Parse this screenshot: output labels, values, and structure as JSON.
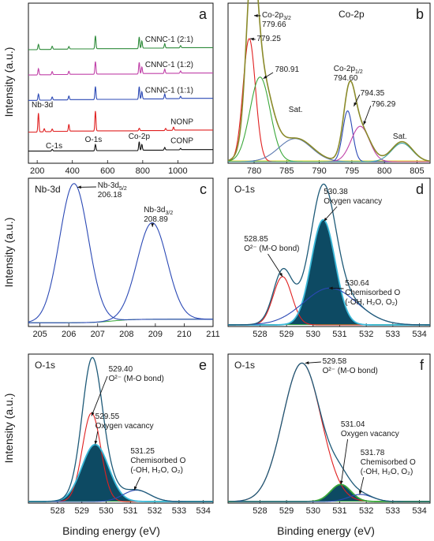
{
  "figure": {
    "ylabel": "Intensity (a.u.)",
    "xlabel": "Binding energy (eV)"
  },
  "chart_data": [
    {
      "id": "a",
      "type": "line",
      "panel_label": "a",
      "xlim": [
        150,
        1200
      ],
      "xticks": [
        200,
        400,
        600,
        800,
        1000
      ],
      "series": [
        {
          "name": "CNNC-1 (2:1)",
          "color": "#2e8b3a",
          "offset": 5.0,
          "peaks": [
            [
              207,
              0.25
            ],
            [
              285,
              0.15
            ],
            [
              380,
              0.12
            ],
            [
              531,
              0.62
            ],
            [
              780,
              0.55
            ],
            [
              795,
              0.35
            ],
            [
              925,
              0.2
            ],
            [
              1015,
              0.1
            ]
          ]
        },
        {
          "name": "CNNC-1 (1:2)",
          "color": "#c040a8",
          "offset": 3.8,
          "peaks": [
            [
              207,
              0.3
            ],
            [
              285,
              0.15
            ],
            [
              380,
              0.15
            ],
            [
              531,
              0.6
            ],
            [
              780,
              0.55
            ],
            [
              795,
              0.32
            ],
            [
              925,
              0.2
            ],
            [
              1015,
              0.1
            ]
          ]
        },
        {
          "name": "CNNC-1 (1:1)",
          "color": "#2b49b5",
          "offset": 2.6,
          "peaks": [
            [
              207,
              0.3
            ],
            [
              285,
              0.15
            ],
            [
              380,
              0.18
            ],
            [
              531,
              0.62
            ],
            [
              780,
              0.6
            ],
            [
              795,
              0.35
            ],
            [
              925,
              0.22
            ],
            [
              1015,
              0.1
            ]
          ]
        },
        {
          "name": "NONP",
          "color": "#e02020",
          "offset": 1.1,
          "peaks": [
            [
              207,
              0.9
            ],
            [
              240,
              0.15
            ],
            [
              285,
              0.12
            ],
            [
              380,
              0.32
            ],
            [
              531,
              0.95
            ],
            [
              780,
              0.12
            ],
            [
              930,
              0.1
            ],
            [
              975,
              0.15
            ]
          ]
        },
        {
          "name": "CONP",
          "color": "#111111",
          "offset": 0.2,
          "peaks": [
            [
              285,
              0.08
            ],
            [
              531,
              0.3
            ],
            [
              780,
              0.42
            ],
            [
              795,
              0.28
            ],
            [
              925,
              0.12
            ],
            [
              1015,
              0.06
            ]
          ]
        }
      ],
      "annotations": [
        "Nb-3d",
        "C-1s",
        "O-1s",
        "Co-2p"
      ]
    },
    {
      "id": "b",
      "type": "line",
      "panel_label": "b",
      "title_text": "Co-2p",
      "xlim": [
        776,
        807
      ],
      "xticks": [
        780,
        785,
        790,
        795,
        800,
        805
      ],
      "ylim": [
        0,
        1.0
      ],
      "series": [
        {
          "name": "envelope",
          "color": "#8a8a2a",
          "width": 1.6,
          "components": [
            [
              779.66,
              0.95,
              0.85
            ],
            [
              781.0,
              0.55,
              1.7
            ],
            [
              786.5,
              0.15,
              2.5
            ],
            [
              794.6,
              0.4,
              0.9
            ],
            [
              796.3,
              0.22,
              1.5
            ],
            [
              802.7,
              0.13,
              1.6
            ]
          ]
        },
        {
          "name": "Co-2p3/2 peak",
          "color": "#e02020",
          "components": [
            [
              779.25,
              0.8,
              0.95
            ]
          ]
        },
        {
          "name": "780.91 component",
          "color": "#3aa83a",
          "components": [
            [
              780.91,
              0.55,
              1.55
            ]
          ]
        },
        {
          "name": "satellite 1",
          "color": "#5c7ab0",
          "components": [
            [
              786.3,
              0.15,
              2.5
            ]
          ]
        },
        {
          "name": "794.35 component",
          "color": "#2b49b5",
          "components": [
            [
              794.35,
              0.33,
              0.75
            ]
          ]
        },
        {
          "name": "796.29 component",
          "color": "#c040a8",
          "components": [
            [
              796.29,
              0.23,
              1.4
            ]
          ]
        },
        {
          "name": "satellite 2",
          "color": "#3aa0a0",
          "components": [
            [
              802.7,
              0.12,
              1.6
            ]
          ]
        }
      ],
      "baseline_color": "#e6d800",
      "labels": {
        "p1_name": "Co-2p",
        "p1_sub": "3/2",
        "p1_val": "779.66",
        "p2": "779.25",
        "p3": "780.91",
        "sat": "Sat.",
        "p4_name": "Co-2p",
        "p4_sub": "1/2",
        "p4_val": "794.60",
        "p5": "794.35",
        "p6": "796.29"
      }
    },
    {
      "id": "c",
      "type": "line",
      "panel_label": "c",
      "title_text": "Nb-3d",
      "xlim": [
        204.6,
        211.0
      ],
      "xticks": [
        205,
        206,
        207,
        208,
        209,
        210,
        211
      ],
      "ylim": [
        0,
        1.0
      ],
      "series": [
        {
          "name": "Nb-3d5/2",
          "color": "#2b49b5",
          "components": [
            [
              206.18,
              0.98,
              0.5
            ]
          ]
        },
        {
          "name": "Nb-3d3/2",
          "color": "#2b49b5",
          "components": [
            [
              208.89,
              0.68,
              0.52
            ]
          ]
        }
      ],
      "baseline": {
        "color": "#3aa83a",
        "step_at": 207.5,
        "low": 0.015,
        "high": 0.04
      },
      "labels": {
        "p1_name": "Nb-3d",
        "p1_sub": "5/2",
        "p1_val": "206.18",
        "p2_name": "Nb-3d",
        "p2_sub": "3/2",
        "p2_val": "208.89"
      }
    },
    {
      "id": "d",
      "type": "area",
      "panel_label": "d",
      "title_text": "O-1s",
      "xlim": [
        526.8,
        534.4
      ],
      "xticks": [
        528,
        529,
        530,
        531,
        532,
        533,
        534
      ],
      "ylim": [
        0,
        1.0
      ],
      "components": [
        {
          "name": "O2- (M-O bond)",
          "center": 528.85,
          "amp": 0.34,
          "sigma": 0.35,
          "color": "#e02020",
          "fill": false
        },
        {
          "name": "Oxygen vacancy",
          "center": 530.38,
          "amp": 0.74,
          "sigma": 0.45,
          "color": "#3ab8d8",
          "fill": true
        },
        {
          "name": "Chemisorbed O",
          "center": 530.64,
          "amp": 0.26,
          "sigma": 1.0,
          "color": "#2b49b5",
          "fill": false
        }
      ],
      "envelope_color": "#1e5a78",
      "fill_color": "#0d4a63",
      "labels": {
        "v1": "530.38",
        "v1_name": "Oxygen vacancy",
        "v2": "528.85",
        "v2_name": "O²⁻ (M-O bond)",
        "v3": "530.64",
        "v3_name": "Chemisorbed O",
        "v3_sub": "(-OH, H₂O, O₂)"
      }
    },
    {
      "id": "e",
      "type": "area",
      "panel_label": "e",
      "title_text": "O-1s",
      "xlim": [
        526.8,
        534.4
      ],
      "xticks": [
        528,
        529,
        530,
        531,
        532,
        533,
        534
      ],
      "ylim": [
        0,
        1.0
      ],
      "components": [
        {
          "name": "O2- (M-O bond)",
          "center": 529.4,
          "amp": 0.62,
          "sigma": 0.38,
          "color": "#e02020",
          "fill": false
        },
        {
          "name": "Oxygen vacancy",
          "center": 529.55,
          "amp": 0.4,
          "sigma": 0.55,
          "color": "#3ab8d8",
          "fill": true
        },
        {
          "name": "Chemisorbed O",
          "center": 531.25,
          "amp": 0.08,
          "sigma": 0.55,
          "color": "#2b49b5",
          "fill": false
        }
      ],
      "envelope_color": "#1e5a78",
      "fill_color": "#0d4a63",
      "labels": {
        "v1": "529.40",
        "v1_name": "O²⁻ (M-O bond)",
        "v2": "529.55",
        "v2_name": "Oxygen vacancy",
        "v3": "531.25",
        "v3_name": "Chemisorbed O",
        "v3_sub": "(-OH, H₂O, O₂)"
      }
    },
    {
      "id": "f",
      "type": "area",
      "panel_label": "f",
      "title_text": "O-1s",
      "xlim": [
        526.8,
        534.4
      ],
      "xticks": [
        528,
        529,
        530,
        531,
        532,
        533,
        534
      ],
      "ylim": [
        0,
        1.0
      ],
      "components": [
        {
          "name": "O2- (M-O bond)",
          "center": 529.58,
          "amp": 0.97,
          "sigma": 0.72,
          "color": "#e02020",
          "fill": false
        },
        {
          "name": "Oxygen vacancy",
          "center": 531.04,
          "amp": 0.12,
          "sigma": 0.38,
          "color": "#3aa83a",
          "fill": true
        },
        {
          "name": "Chemisorbed O",
          "center": 531.78,
          "amp": 0.05,
          "sigma": 0.45,
          "color": "#2b49b5",
          "fill": false
        }
      ],
      "envelope_color": "#1e5a78",
      "fill_color": "#0d4a63",
      "labels": {
        "v1": "529.58",
        "v1_name": "O²⁻ (M-O bond)",
        "v2": "531.04",
        "v2_name": "Oxygen vacancy",
        "v3": "531.78",
        "v3_name": "Chemisorbed O",
        "v3_sub": "(-OH, H₂O, O₂)"
      }
    }
  ]
}
